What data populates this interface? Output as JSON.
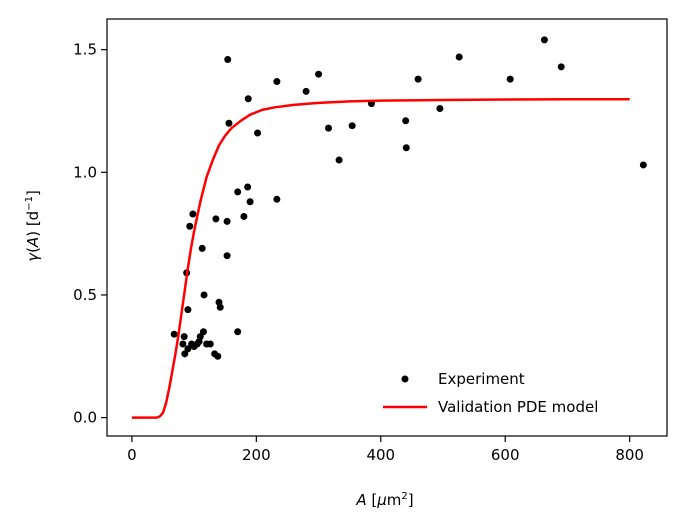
{
  "chart_data": {
    "type": "scatter",
    "title": "",
    "xlabel": {
      "italic": "A",
      "pre": " [",
      "mu": "μ",
      "unit": "m",
      "sup": "2",
      "post": "]"
    },
    "ylabel": {
      "gamma": "γ",
      "open": "(",
      "italic": "A",
      "close": ")",
      "pre": " [d",
      "sup": "−1",
      "post": "]"
    },
    "xlim": [
      -40,
      860
    ],
    "ylim": [
      -0.075,
      1.625
    ],
    "xticks": [
      0,
      200,
      400,
      600,
      800
    ],
    "xtick_labels": [
      "0",
      "200",
      "400",
      "600",
      "800"
    ],
    "yticks": [
      0.0,
      0.5,
      1.0,
      1.5
    ],
    "ytick_labels": [
      "0.0",
      "0.5",
      "1.0",
      "1.5"
    ],
    "legend_position": "lower-right",
    "series": [
      {
        "name": "Experiment",
        "kind": "scatter",
        "color": "#000000",
        "points": [
          [
            68,
            0.34
          ],
          [
            82,
            0.3
          ],
          [
            85,
            0.26
          ],
          [
            88,
            0.59
          ],
          [
            90,
            0.44
          ],
          [
            84,
            0.33
          ],
          [
            90,
            0.28
          ],
          [
            93,
            0.78
          ],
          [
            96,
            0.3
          ],
          [
            98,
            0.83
          ],
          [
            100,
            0.29
          ],
          [
            105,
            0.3
          ],
          [
            108,
            0.31
          ],
          [
            110,
            0.33
          ],
          [
            113,
            0.69
          ],
          [
            115,
            0.35
          ],
          [
            116,
            0.5
          ],
          [
            120,
            0.3
          ],
          [
            126,
            0.3
          ],
          [
            133,
            0.26
          ],
          [
            135,
            0.81
          ],
          [
            138,
            0.25
          ],
          [
            140,
            0.47
          ],
          [
            142,
            0.45
          ],
          [
            153,
            0.8
          ],
          [
            153,
            0.66
          ],
          [
            154,
            1.46
          ],
          [
            156,
            1.2
          ],
          [
            170,
            0.35
          ],
          [
            170,
            0.92
          ],
          [
            180,
            0.82
          ],
          [
            186,
            0.94
          ],
          [
            187,
            1.3
          ],
          [
            190,
            0.88
          ],
          [
            202,
            1.16
          ],
          [
            233,
            0.89
          ],
          [
            233,
            1.37
          ],
          [
            280,
            1.33
          ],
          [
            300,
            1.4
          ],
          [
            316,
            1.18
          ],
          [
            333,
            1.05
          ],
          [
            354,
            1.19
          ],
          [
            385,
            1.28
          ],
          [
            440,
            1.21
          ],
          [
            441,
            1.1
          ],
          [
            460,
            1.38
          ],
          [
            495,
            1.26
          ],
          [
            526,
            1.47
          ],
          [
            608,
            1.38
          ],
          [
            663,
            1.54
          ],
          [
            690,
            1.43
          ],
          [
            822,
            1.03
          ]
        ]
      },
      {
        "name": "Validation PDE model",
        "kind": "line",
        "color": "#ff0000",
        "points": [
          [
            0,
            0.0
          ],
          [
            20,
            0.0
          ],
          [
            40,
            0.0
          ],
          [
            45,
            0.005
          ],
          [
            50,
            0.02
          ],
          [
            55,
            0.06
          ],
          [
            60,
            0.12
          ],
          [
            65,
            0.19
          ],
          [
            70,
            0.26
          ],
          [
            75,
            0.34
          ],
          [
            80,
            0.43
          ],
          [
            85,
            0.52
          ],
          [
            90,
            0.61
          ],
          [
            95,
            0.69
          ],
          [
            100,
            0.76
          ],
          [
            110,
            0.88
          ],
          [
            120,
            0.98
          ],
          [
            130,
            1.05
          ],
          [
            140,
            1.11
          ],
          [
            150,
            1.15
          ],
          [
            160,
            1.18
          ],
          [
            175,
            1.21
          ],
          [
            190,
            1.235
          ],
          [
            210,
            1.255
          ],
          [
            230,
            1.265
          ],
          [
            260,
            1.275
          ],
          [
            300,
            1.283
          ],
          [
            350,
            1.289
          ],
          [
            400,
            1.292
          ],
          [
            500,
            1.295
          ],
          [
            600,
            1.297
          ],
          [
            700,
            1.298
          ],
          [
            800,
            1.298
          ]
        ]
      }
    ]
  }
}
